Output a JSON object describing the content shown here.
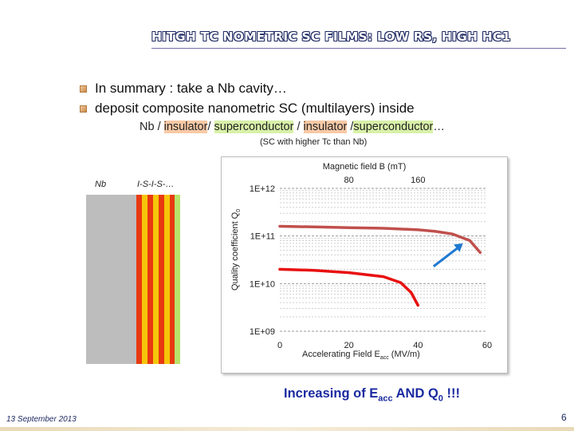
{
  "slide": {
    "title": "HITGH TC NOMETRIC SC FILMS: LOW RS, HIGH HC1",
    "bullets": [
      "In summary  : take a Nb cavity…",
      "deposit composite nanometric SC (multilayers) inside"
    ],
    "layers_line": {
      "p1": "Nb / ",
      "ins1": "insulator",
      "p2": "/ ",
      "sc1": "superconductor",
      "p3": " / ",
      "ins2": "insulator",
      "p4": " /",
      "sc2": "superconductor",
      "p5": "…"
    },
    "note": "(SC with higher Tc than Nb)",
    "stack_labels": {
      "nb": "Nb",
      "isis": "I-S-I-S-…"
    },
    "conclusion": {
      "prefix": "Increasing of E",
      "sub1": "acc",
      "mid": " AND Q",
      "sub2": "0",
      "suffix": " !!!"
    },
    "footer_date": "13 September 2013",
    "page_number": "6"
  },
  "colors": {
    "title_outline": "#1f2a63",
    "nb_gray": "#bdbdbd",
    "stripe_red": "#e83a10",
    "stripe_yellow": "#f6c60a",
    "stripe_green": "#b7e36a",
    "curve_red": "#e81010",
    "curve_brown": "#c0504d",
    "arrow_blue": "#1f78d0",
    "conclusion_blue": "#1a2aa0"
  },
  "chart_data": {
    "type": "line",
    "top_axis_title": "Magnetic field B (mT)",
    "top_ticks": [
      "80",
      "160"
    ],
    "xlabel_prefix": "Accelerating Field E",
    "xlabel_sub": "acc",
    "xlabel_suffix": " (MV/m)",
    "ylabel_prefix": "Quality coefficient Q",
    "ylabel_sub": "0",
    "x_ticks": [
      "0",
      "20",
      "40",
      "60"
    ],
    "y_ticks": [
      "1E+12",
      "1E+11",
      "1E+10",
      "1E+09"
    ],
    "xlim": [
      0,
      60
    ],
    "ylim_log10": [
      9,
      12
    ],
    "log_y": true,
    "grid": true,
    "series": [
      {
        "color": "#e81010",
        "x": [
          0,
          10,
          20,
          30,
          35,
          38,
          40
        ],
        "y": [
          20000000000.0,
          19000000000.0,
          17000000000.0,
          14000000000.0,
          10500000000.0,
          6500000000.0,
          3500000000.0
        ]
      },
      {
        "color": "#c0504d",
        "x": [
          0,
          10,
          20,
          30,
          40,
          45,
          50,
          55,
          58
        ],
        "y": [
          160000000000.0,
          155000000000.0,
          150000000000.0,
          145000000000.0,
          135000000000.0,
          125000000000.0,
          110000000000.0,
          80000000000.0,
          45000000000.0
        ]
      }
    ]
  }
}
